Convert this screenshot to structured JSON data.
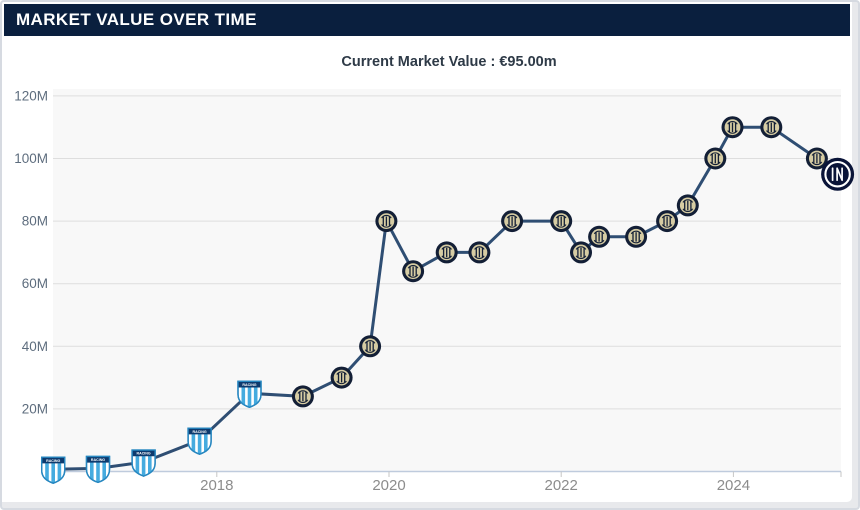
{
  "panel": {
    "header": "MARKET VALUE OVER TIME"
  },
  "colors": {
    "header_bg": "#0a1f3e",
    "line": "#2f4e73",
    "plot_bg": "#f8f8f8",
    "gridline": "#dedede",
    "axis_line": "#bfcbdd",
    "tick": "#c6c6c6",
    "y_label": "#5e6d7e",
    "x_label": "#8c8c8c",
    "racing_blue": "#45abdf",
    "racing_border": "#2787c0",
    "racing_banner": "#0d3a6e",
    "inter_old_ring": "#131f36",
    "inter_old_fill": "#d6cca3",
    "inter_new_bg": "#0a1438"
  },
  "chart_data": {
    "type": "line",
    "title": "Current Market Value : €95.00m",
    "current_value_label": "€95.00m",
    "legend": "none",
    "grid": "horizontal",
    "x_axis": {
      "tick_labels": [
        "2018",
        "2020",
        "2022",
        "2024"
      ],
      "tick_years": [
        2018,
        2020,
        2022,
        2024
      ],
      "range_years": [
        2016.0,
        2025.35
      ]
    },
    "y_axis": {
      "unit": "€ million",
      "tick_labels": [
        "120M",
        "100M",
        "80M",
        "60M",
        "40M",
        "20M"
      ],
      "tick_values": [
        120,
        100,
        80,
        60,
        40,
        20
      ],
      "range": [
        0,
        122.5
      ]
    },
    "clubs": {
      "racing": {
        "name": "Racing Club",
        "banner_text": "RACING",
        "marker": "shield-crest"
      },
      "inter_old": {
        "name": "Inter Milan (2014-2021 crest)",
        "marker": "round-gold-crest"
      },
      "inter_new": {
        "name": "Inter Milan (current crest)",
        "marker": "round-navy-crest"
      }
    },
    "series": [
      {
        "name": "Market value over time (€m)",
        "points": [
          {
            "year": 2016.1,
            "value": 0.75,
            "club": "racing"
          },
          {
            "year": 2016.62,
            "value": 1,
            "club": "racing"
          },
          {
            "year": 2017.15,
            "value": 3,
            "club": "racing"
          },
          {
            "year": 2017.8,
            "value": 10,
            "club": "racing"
          },
          {
            "year": 2018.38,
            "value": 25,
            "club": "racing"
          },
          {
            "year": 2019.0,
            "value": 24,
            "club": "inter_old"
          },
          {
            "year": 2019.45,
            "value": 30,
            "club": "inter_old"
          },
          {
            "year": 2019.78,
            "value": 40,
            "club": "inter_old"
          },
          {
            "year": 2019.97,
            "value": 80,
            "club": "inter_old"
          },
          {
            "year": 2020.28,
            "value": 64,
            "club": "inter_old"
          },
          {
            "year": 2020.67,
            "value": 70,
            "club": "inter_old"
          },
          {
            "year": 2021.05,
            "value": 70,
            "club": "inter_old"
          },
          {
            "year": 2021.43,
            "value": 80,
            "club": "inter_old"
          },
          {
            "year": 2022.0,
            "value": 80,
            "club": "inter_old"
          },
          {
            "year": 2022.23,
            "value": 70,
            "club": "inter_old"
          },
          {
            "year": 2022.44,
            "value": 75,
            "club": "inter_old"
          },
          {
            "year": 2022.87,
            "value": 75,
            "club": "inter_old"
          },
          {
            "year": 2023.23,
            "value": 80,
            "club": "inter_old"
          },
          {
            "year": 2023.47,
            "value": 85,
            "club": "inter_old"
          },
          {
            "year": 2023.79,
            "value": 100,
            "club": "inter_old"
          },
          {
            "year": 2023.99,
            "value": 110,
            "club": "inter_old"
          },
          {
            "year": 2024.44,
            "value": 110,
            "club": "inter_old"
          },
          {
            "year": 2024.97,
            "value": 100,
            "club": "inter_old"
          },
          {
            "year": 2025.21,
            "value": 95,
            "club": "inter_new"
          }
        ]
      }
    ]
  }
}
